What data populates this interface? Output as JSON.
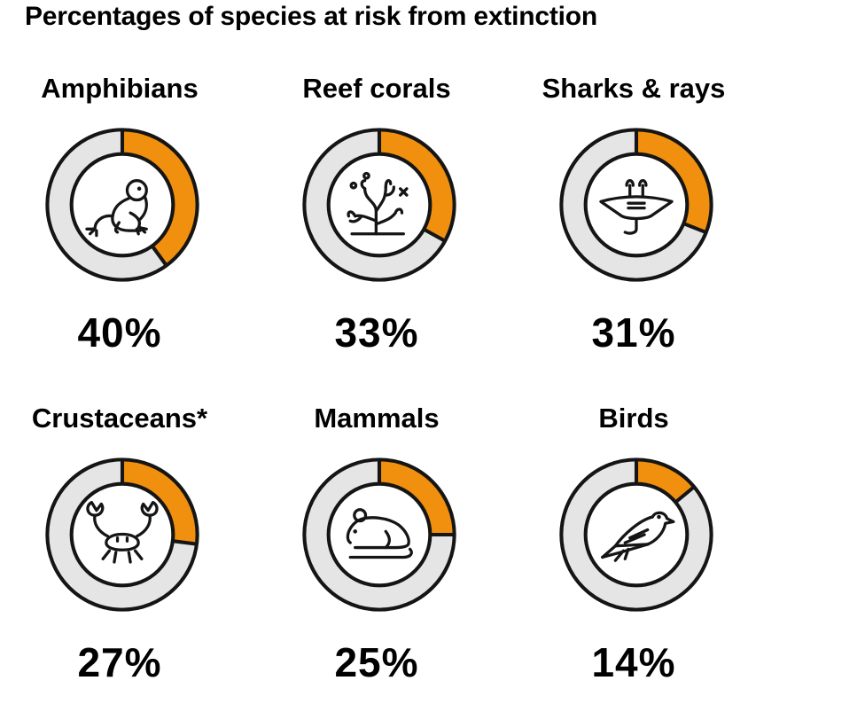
{
  "title": "Percentages of species at risk from extinction",
  "colors": {
    "accent": "#F0900E",
    "track": "#E5E5E5",
    "stroke": "#151515"
  },
  "chart_data": {
    "type": "pie",
    "title": "Percentages of species at risk from extinction",
    "series": [
      {
        "name": "Amphibians",
        "value": 40,
        "label": "40%",
        "icon": "frog-icon"
      },
      {
        "name": "Reef corals",
        "value": 33,
        "label": "33%",
        "icon": "coral-icon"
      },
      {
        "name": "Sharks & rays",
        "value": 31,
        "label": "31%",
        "icon": "ray-icon"
      },
      {
        "name": "Crustaceans*",
        "value": 27,
        "label": "27%",
        "icon": "crab-icon"
      },
      {
        "name": "Mammals",
        "value": 25,
        "label": "25%",
        "icon": "mouse-icon"
      },
      {
        "name": "Birds",
        "value": 14,
        "label": "14%",
        "icon": "bird-icon"
      }
    ]
  }
}
